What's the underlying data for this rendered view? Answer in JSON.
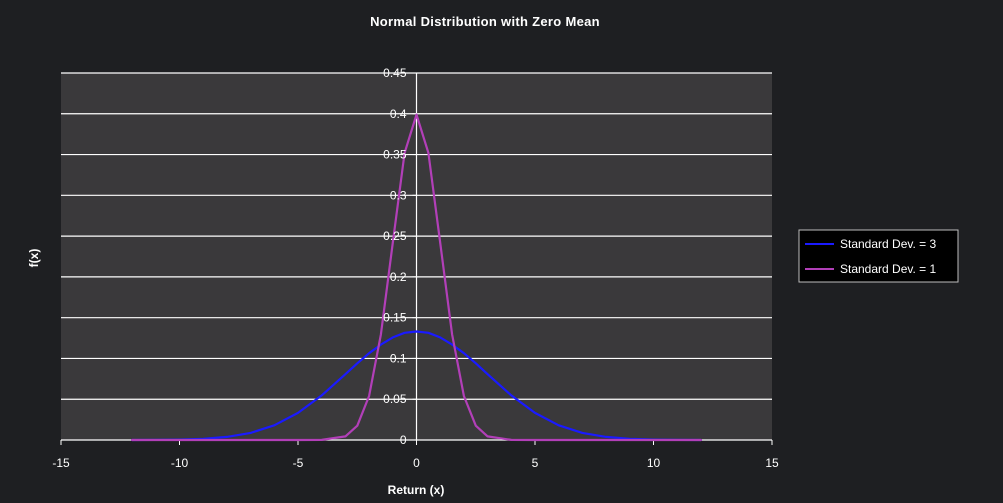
{
  "chart_data": {
    "type": "line",
    "title": "Normal Distribution with Zero Mean",
    "xlabel": "Return (x)",
    "ylabel": "f(x)",
    "xlim": [
      -15,
      15
    ],
    "ylim": [
      0,
      0.45
    ],
    "x_ticks": [
      "-15",
      "-10",
      "-5",
      "0",
      "5",
      "10",
      "15"
    ],
    "y_ticks": [
      "0",
      "0.05",
      "0.1",
      "0.15",
      "0.2",
      "0.25",
      "0.3",
      "0.35",
      "0.4",
      "0.45"
    ],
    "grid": "horizontal",
    "legend_position": "right",
    "x": [
      -12,
      -11,
      -10,
      -9,
      -8,
      -7,
      -6,
      -5,
      -4,
      -3,
      -2.5,
      -2,
      -1.5,
      -1,
      -0.5,
      0,
      0.5,
      1,
      1.5,
      2,
      2.5,
      3,
      4,
      5,
      6,
      7,
      8,
      9,
      10,
      11,
      12
    ],
    "series": [
      {
        "name": "Standard Dev. = 3",
        "color": "#1a1aff",
        "values": [
          4.46e-05,
          0.0001619,
          0.0005143,
          0.0014772,
          0.0037956,
          0.0087311,
          0.0179969,
          0.0331989,
          0.05467,
          0.0806569,
          0.0940893,
          0.1064827,
          0.1169396,
          0.1257944,
          0.1314906,
          0.1329808,
          0.1314906,
          0.1257944,
          0.1169396,
          0.1064827,
          0.0940893,
          0.0806569,
          0.05467,
          0.0331989,
          0.0179969,
          0.0087311,
          0.0037956,
          0.0014772,
          0.0005143,
          0.0001619,
          4.46e-05
        ]
      },
      {
        "name": "Standard Dev. = 1",
        "color": "#b23fb8",
        "values": [
          0,
          0,
          0,
          0,
          0,
          0,
          0,
          1.5e-06,
          0.0001338,
          0.0044318,
          0.0175283,
          0.053991,
          0.1295176,
          0.2419707,
          0.3520653,
          0.3989423,
          0.3520653,
          0.2419707,
          0.1295176,
          0.053991,
          0.0175283,
          0.0044318,
          0.0001338,
          1.5e-06,
          0,
          0,
          0,
          0,
          0,
          0,
          0
        ]
      }
    ]
  }
}
